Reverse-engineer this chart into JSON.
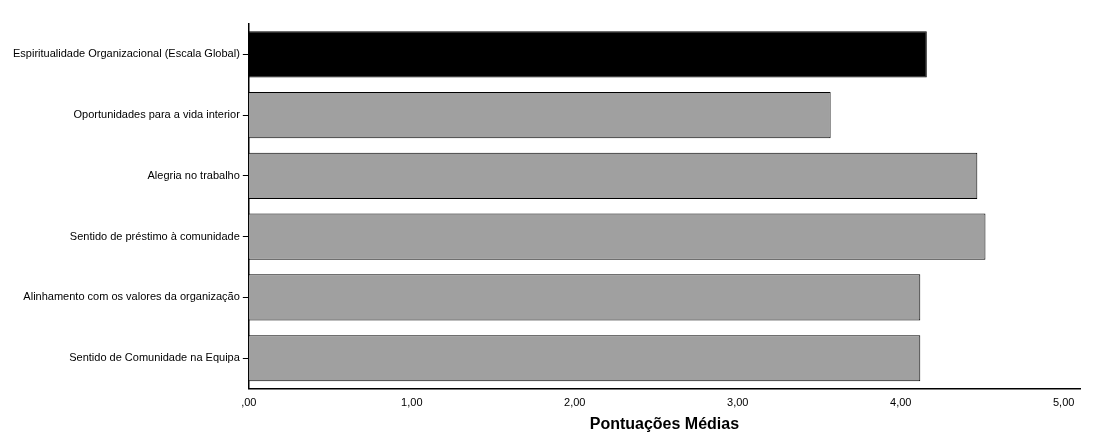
{
  "chart_data": {
    "type": "bar",
    "orientation": "horizontal",
    "xlabel": "Pontuações Médias",
    "categories": [
      "Espiritualidade Organizacional (Escala Global)",
      "Oportunidades para a vida interior",
      "Alegria no trabalho",
      "Sentido de préstimo à comunidade",
      "Alinhamento com os valores da organização",
      "Sentido de Comunidade na Equipa"
    ],
    "values": [
      4.16,
      3.57,
      4.47,
      4.52,
      4.12,
      4.12
    ],
    "colors": [
      "#000000",
      "#a0a0a0",
      "#a0a0a0",
      "#a0a0a0",
      "#a0a0a0",
      "#a0a0a0"
    ],
    "xlim": [
      0,
      5.1
    ],
    "xticks": [
      {
        "value": 0,
        "label": ",00"
      },
      {
        "value": 1,
        "label": "1,00"
      },
      {
        "value": 2,
        "label": "2,00"
      },
      {
        "value": 3,
        "label": "3,00"
      },
      {
        "value": 4,
        "label": "4,00"
      },
      {
        "value": 5,
        "label": "5,00"
      }
    ],
    "grid": false,
    "legend": false
  }
}
